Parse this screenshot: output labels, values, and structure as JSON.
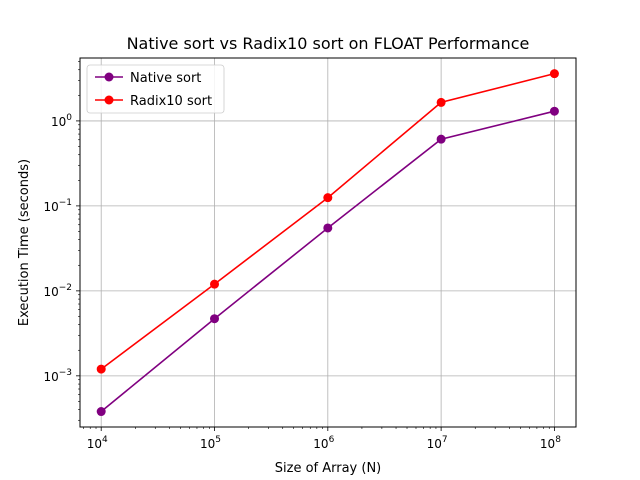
{
  "chart_data": {
    "type": "line",
    "title": "Native sort vs Radix10 sort on FLOAT Performance",
    "xlabel": "Size of Array (N)",
    "ylabel": "Execution Time (seconds)",
    "x": [
      10000,
      100000,
      1000000,
      10000000,
      100000000
    ],
    "xscale": "log",
    "yscale": "log",
    "xlim": [
      6500,
      155000000
    ],
    "ylim": [
      0.00025,
      5.5
    ],
    "xticks": [
      {
        "base": "10",
        "exp": "4",
        "value": 10000
      },
      {
        "base": "10",
        "exp": "5",
        "value": 100000
      },
      {
        "base": "10",
        "exp": "6",
        "value": 1000000
      },
      {
        "base": "10",
        "exp": "7",
        "value": 10000000
      },
      {
        "base": "10",
        "exp": "8",
        "value": 100000000
      }
    ],
    "yticks": [
      {
        "base": "10",
        "exp": "−3",
        "value": 0.001
      },
      {
        "base": "10",
        "exp": "−2",
        "value": 0.01
      },
      {
        "base": "10",
        "exp": "−1",
        "value": 0.1
      },
      {
        "base": "10",
        "exp": "0",
        "value": 1
      }
    ],
    "grid": true,
    "legend_position": "upper-left",
    "series": [
      {
        "name": "Native sort",
        "color": "#800080",
        "marker": "circle",
        "values": [
          0.00038,
          0.0047,
          0.055,
          0.61,
          1.3
        ]
      },
      {
        "name": "Radix10 sort",
        "color": "#ff0000",
        "marker": "circle",
        "values": [
          0.0012,
          0.012,
          0.125,
          1.65,
          3.6
        ]
      }
    ]
  }
}
